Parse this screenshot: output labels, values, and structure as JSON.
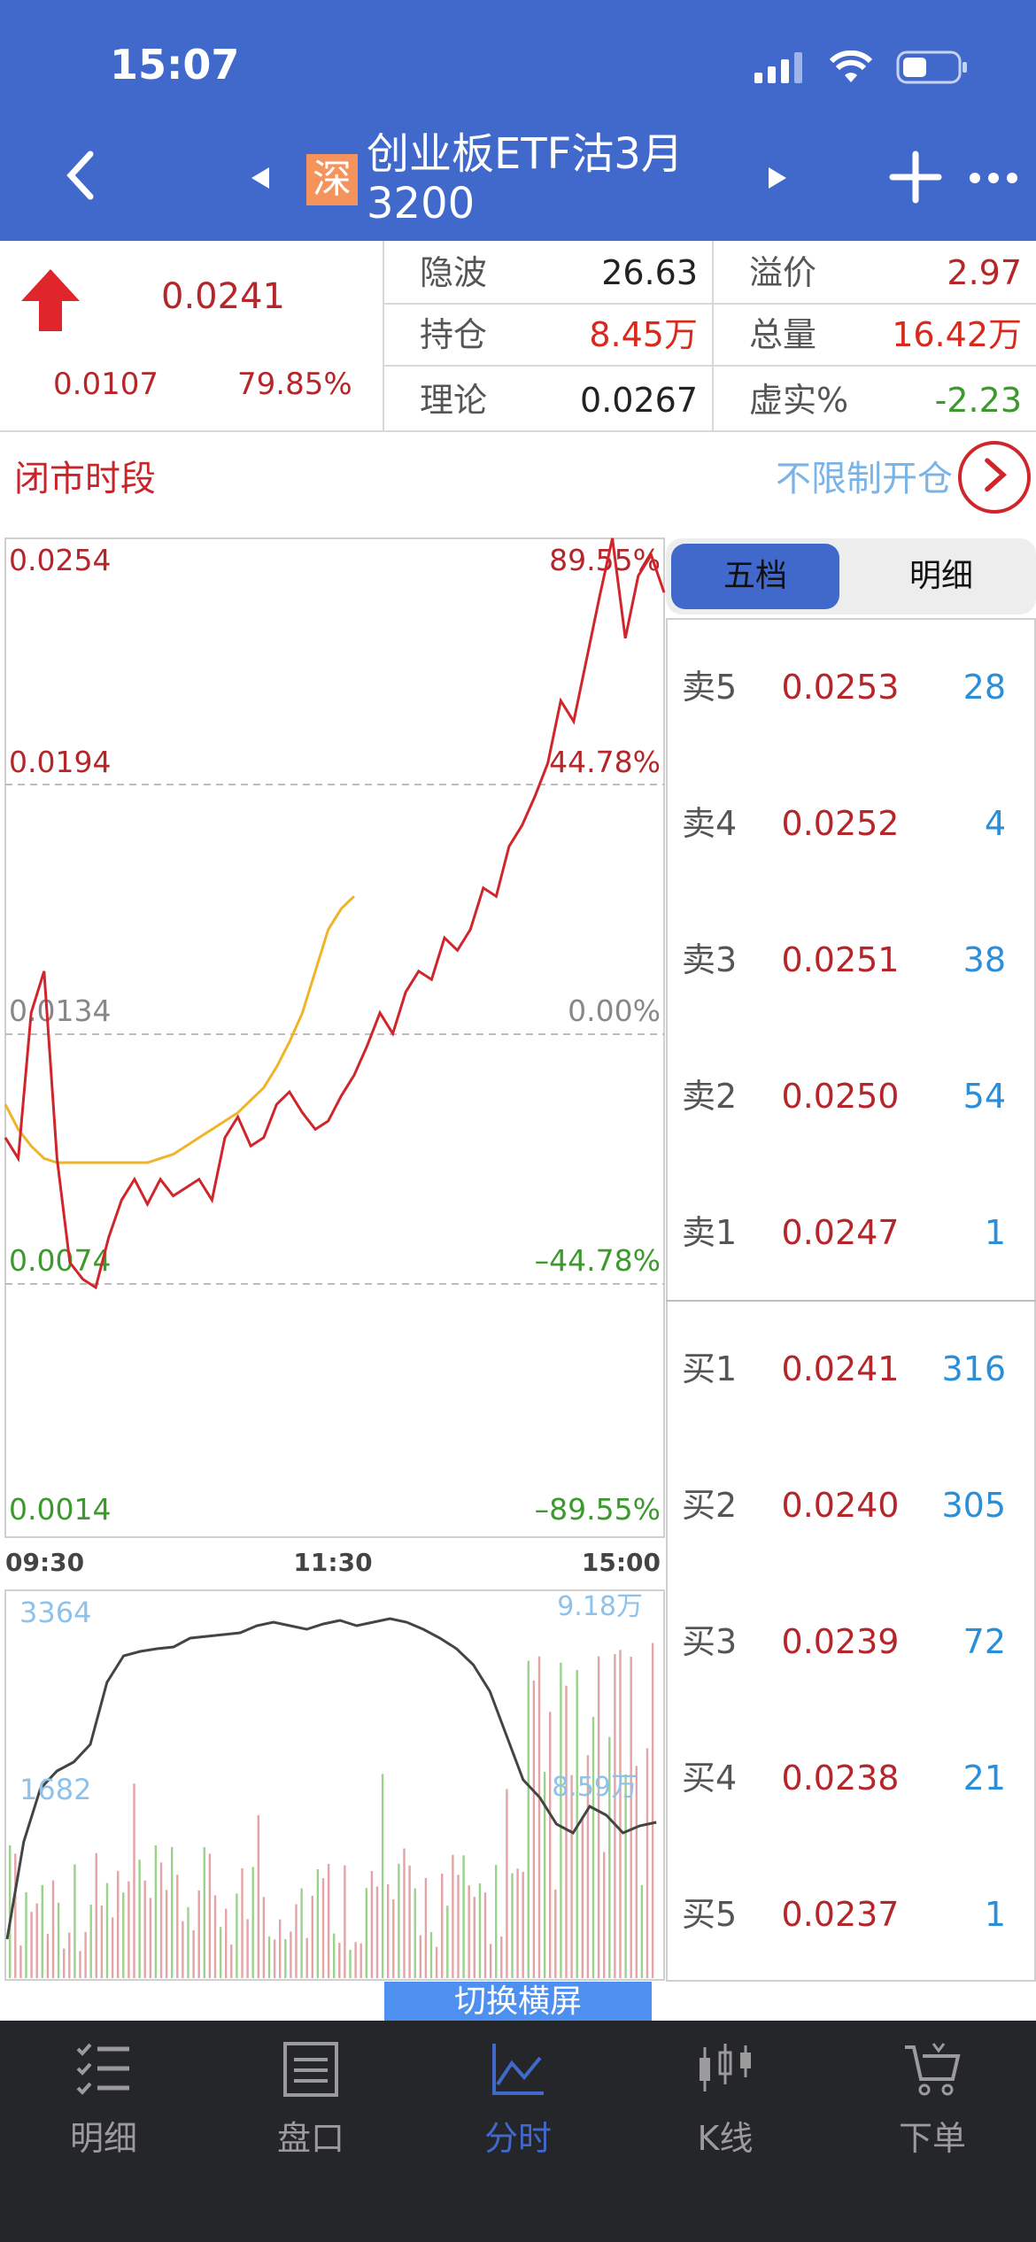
{
  "status_bar": {
    "time": "15:07"
  },
  "header": {
    "exchange_badge": "深",
    "title_line1": "创业板ETF沽3月",
    "title_line2": "3200"
  },
  "quote": {
    "price": "0.0241",
    "change": "0.0107",
    "change_pct": "79.85%",
    "fields": [
      {
        "label": "隐波",
        "value": "26.63",
        "color": "#222222"
      },
      {
        "label": "溢价",
        "value": "2.97",
        "color": "#b5262a"
      },
      {
        "label": "持仓",
        "value": "8.45万",
        "color": "#d9281c"
      },
      {
        "label": "总量",
        "value": "16.42万",
        "color": "#d9281c"
      },
      {
        "label": "理论",
        "value": "0.0267",
        "color": "#222222"
      },
      {
        "label": "虚实%",
        "value": "-2.23",
        "color": "#3b9a2b"
      }
    ]
  },
  "session": {
    "label": "闭市时段",
    "link": "不限制开仓"
  },
  "intraday": {
    "price_labels": [
      "0.0254",
      "0.0194",
      "0.0134",
      "0.0074",
      "0.0014"
    ],
    "pct_labels": [
      "89.55%",
      "44.78%",
      "0.00%",
      "–44.78%",
      "–89.55%"
    ],
    "time_labels": [
      "09:30",
      "11:30",
      "15:00"
    ],
    "volume_labels": [
      "3364",
      "1682"
    ],
    "volume_right_labels": [
      "9.18万",
      "8.59万"
    ]
  },
  "chart_data": {
    "type": "line",
    "ylim": [
      0.0014,
      0.0254
    ],
    "x_ticks": [
      "09:30",
      "11:30",
      "15:00"
    ],
    "series": [
      {
        "name": "price",
        "color": "#d0252a",
        "values": [
          0.011,
          0.0105,
          0.014,
          0.015,
          0.0105,
          0.008,
          0.0076,
          0.0074,
          0.0086,
          0.0095,
          0.01,
          0.0094,
          0.01,
          0.0096,
          0.0098,
          0.01,
          0.0095,
          0.011,
          0.0115,
          0.0108,
          0.011,
          0.0118,
          0.0121,
          0.0116,
          0.0112,
          0.0114,
          0.012,
          0.0125,
          0.0132,
          0.014,
          0.0135,
          0.0145,
          0.015,
          0.0148,
          0.0158,
          0.0155,
          0.016,
          0.017,
          0.0168,
          0.018,
          0.0185,
          0.0192,
          0.02,
          0.0215,
          0.021,
          0.0225,
          0.024,
          0.0254,
          0.023,
          0.0245,
          0.025,
          0.0241
        ]
      },
      {
        "name": "avg",
        "color": "#f0b429",
        "values": [
          0.0118,
          0.0112,
          0.0108,
          0.0105,
          0.0104,
          0.0104,
          0.0104,
          0.0104,
          0.0104,
          0.0104,
          0.0104,
          0.0104,
          0.0105,
          0.0106,
          0.0108,
          0.011,
          0.0112,
          0.0114,
          0.0116,
          0.0119,
          0.0122,
          0.0127,
          0.0133,
          0.014,
          0.015,
          0.016,
          0.0165,
          0.0168
        ]
      }
    ]
  },
  "order_book": {
    "tabs": [
      "五档",
      "明细"
    ],
    "asks": [
      {
        "label": "卖5",
        "price": "0.0253",
        "qty": "28"
      },
      {
        "label": "卖4",
        "price": "0.0252",
        "qty": "4"
      },
      {
        "label": "卖3",
        "price": "0.0251",
        "qty": "38"
      },
      {
        "label": "卖2",
        "price": "0.0250",
        "qty": "54"
      },
      {
        "label": "卖1",
        "price": "0.0247",
        "qty": "1"
      }
    ],
    "bids": [
      {
        "label": "买1",
        "price": "0.0241",
        "qty": "316"
      },
      {
        "label": "买2",
        "price": "0.0240",
        "qty": "305"
      },
      {
        "label": "买3",
        "price": "0.0239",
        "qty": "72"
      },
      {
        "label": "买4",
        "price": "0.0238",
        "qty": "21"
      },
      {
        "label": "买5",
        "price": "0.0237",
        "qty": "1"
      }
    ]
  },
  "switch_button": "切换横屏",
  "tabbar": {
    "items": [
      "明细",
      "盘口",
      "分时",
      "K线",
      "下单"
    ],
    "active_index": 2
  }
}
